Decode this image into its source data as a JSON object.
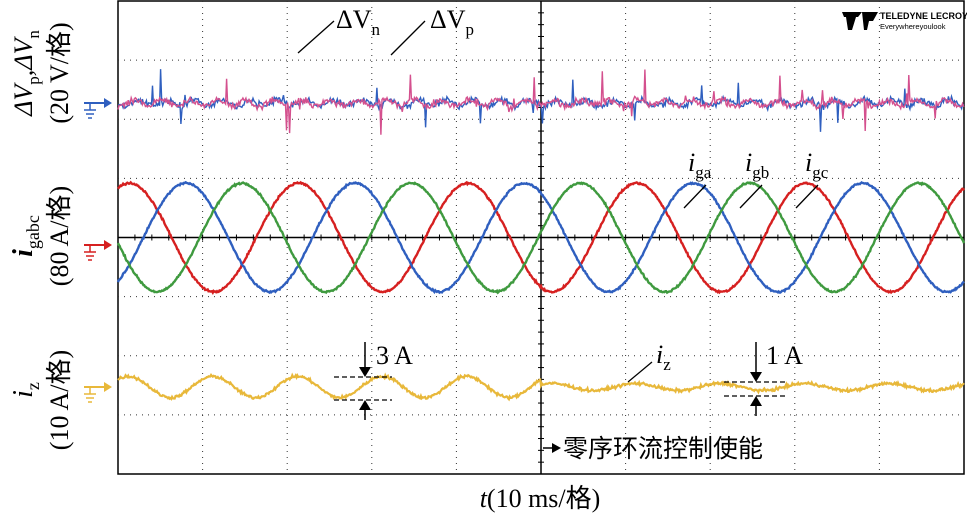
{
  "chart_data": [
    {
      "type": "line",
      "panel": "dv",
      "ylabel_main": "ΔV",
      "ylabel_sub1": "p",
      "ylabel_mid": ",ΔV",
      "ylabel_sub2": "n",
      "yunit": "(20 V/格)",
      "units_per_div": 20,
      "series": [
        {
          "name": "ΔV_n",
          "label_main": "ΔV",
          "label_sub": "n",
          "color": "#d4508e",
          "baseline": 0,
          "noise_pp": 1.2
        },
        {
          "name": "ΔV_p",
          "label_main": "ΔV",
          "label_sub": "p",
          "color": "#2f5fbf",
          "baseline": 0,
          "noise_pp": 1.2
        }
      ]
    },
    {
      "type": "line",
      "panel": "igabc",
      "ylabel_main": "i",
      "ylabel_sub": "gabc",
      "yunit": "(80 A/格)",
      "units_per_div": 80,
      "amplitude": 80,
      "period_ms": 20,
      "series": [
        {
          "name": "i_ga",
          "label_main": "i",
          "label_sub": "ga",
          "color": "#d62020",
          "phase_deg": 0
        },
        {
          "name": "i_gb",
          "label_main": "i",
          "label_sub": "gb",
          "color": "#2f5fbf",
          "phase_deg": -120
        },
        {
          "name": "i_gc",
          "label_main": "i",
          "label_sub": "gc",
          "color": "#3f9a3f",
          "phase_deg": 120
        }
      ]
    },
    {
      "type": "line",
      "panel": "iz",
      "ylabel_main": "i",
      "ylabel_sub": "z",
      "yunit": "(10 A/格)",
      "units_per_div": 10,
      "series": [
        {
          "name": "i_z",
          "label_main": "i",
          "label_sub": "z",
          "color": "#e8b83a",
          "ripple_before_A": 3,
          "ripple_after_A": 1
        }
      ],
      "annotations": {
        "before": "3 A",
        "after": "1 A"
      }
    }
  ],
  "xaxis": {
    "label_main": "t",
    "label_rest": "(10 ms/格)",
    "ms_per_div": 10,
    "divisions": 10
  },
  "enable_event": {
    "label": "零序环流控制使能",
    "time_ms": 50
  },
  "brand": {
    "name": "TELEDYNE LECROY",
    "tagline": "Everywhereyoulook"
  },
  "colors": {
    "grid": "#333333",
    "background": "#ffffff"
  }
}
